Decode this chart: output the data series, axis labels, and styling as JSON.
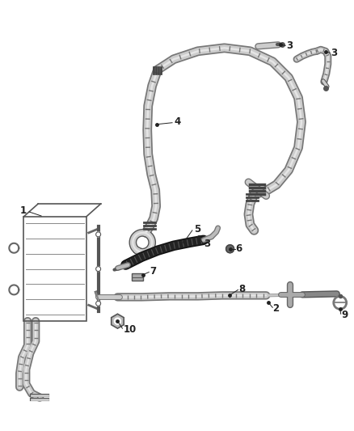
{
  "bg_color": "#ffffff",
  "label_color": "#222222",
  "label_fontsize": 8.5,
  "hose_color": "#c8c8c8",
  "hose_outline": "#888888",
  "hose_highlight": "#e8e8e8",
  "hose_lw": 5,
  "black_hose_color": "#2a2a2a",
  "cooler_color": "#888888",
  "fitting_color": "#999999",
  "line_color": "#555555"
}
